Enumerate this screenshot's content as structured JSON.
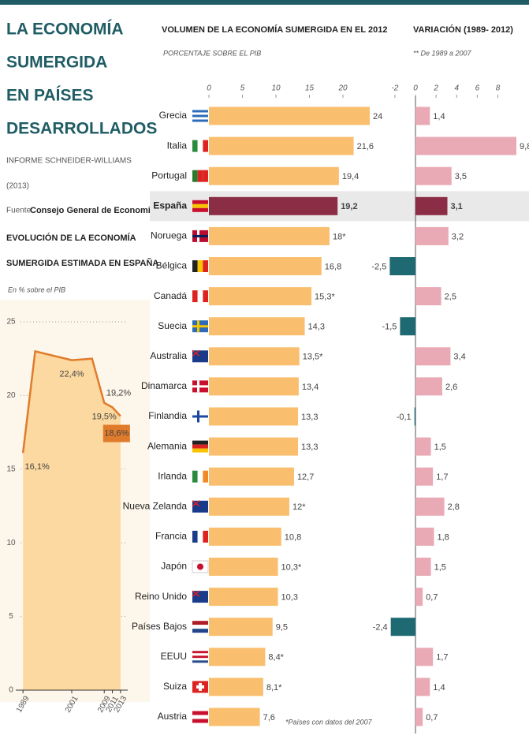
{
  "header": {
    "title_lines": [
      "LA ECONOMÍA",
      "SUMERGIDA",
      "EN PAÍSES",
      "DESARROLLADOS"
    ],
    "report_lines": [
      "INFORME SCHNEIDER-WILLIAMS",
      "(2013)"
    ],
    "source_label": "Fuente:",
    "source": "Consejo General de Economistas"
  },
  "chart_data": [
    {
      "type": "area",
      "title_lines": [
        "EVOLUCIÓN DE LA ECONOMÍA",
        "SUMERGIDA ESTIMADA EN ESPAÑA"
      ],
      "subtitle": "En % sobre el PIB",
      "x": [
        1989,
        1992,
        2001,
        2006,
        2009,
        2011,
        2013
      ],
      "values": [
        16.1,
        23.0,
        22.4,
        22.5,
        19.5,
        19.2,
        18.6
      ],
      "value_labels": [
        "16,1%",
        null,
        "22,4%",
        null,
        "19,5%",
        "19,2%",
        "18,6%"
      ],
      "xlim": [
        1988,
        2014
      ],
      "xticks": [
        1989,
        2001,
        2009,
        2011,
        2013
      ],
      "ylim": [
        0,
        25
      ],
      "yticks": [
        0,
        5,
        10,
        15,
        20,
        25
      ],
      "color": "#e07b2c",
      "fill": "#fbd9a0",
      "grid": true
    },
    {
      "type": "hbar",
      "title": "VOLUMEN DE LA ECONOMÍA SUMERGIDA EN EL 2012",
      "subtitle": "PORCENTAJE SOBRE EL PIB",
      "footnote": "*Países con datos del 2007",
      "categories": [
        "Grecia",
        "Italia",
        "Portugal",
        "España",
        "Noruega",
        "Bélgica",
        "Canadá",
        "Suecia",
        "Australia",
        "Dinamarca",
        "Finlandia",
        "Alemania",
        "Irlanda",
        "Nueva Zelanda",
        "Francia",
        "Japón",
        "Reino Unido",
        "Países Bajos",
        "EEUU",
        "Suiza",
        "Austria"
      ],
      "values": [
        24,
        21.6,
        19.4,
        19.2,
        18,
        16.8,
        15.3,
        14.3,
        13.5,
        13.4,
        13.3,
        13.3,
        12.7,
        12,
        10.8,
        10.3,
        10.3,
        9.5,
        8.4,
        8.1,
        7.6
      ],
      "value_labels": [
        "24",
        "21,6",
        "19,4",
        "19,2",
        "18*",
        "16,8",
        "15,3*",
        "14,3",
        "13,5*",
        "13,4",
        "13,3",
        "13,3",
        "12,7",
        "12*",
        "10,8",
        "10,3*",
        "10,3",
        "9,5",
        "8,4*",
        "8,1*",
        "7,6"
      ],
      "colors": [
        "#f9bf6e",
        "#f9bf6e",
        "#f9bf6e",
        "#8b2d45",
        "#f9bf6e",
        "#f9bf6e",
        "#f9bf6e",
        "#f9bf6e",
        "#f9bf6e",
        "#f9bf6e",
        "#f9bf6e",
        "#f9bf6e",
        "#f9bf6e",
        "#f9bf6e",
        "#f9bf6e",
        "#f9bf6e",
        "#f9bf6e",
        "#f9bf6e",
        "#f9bf6e",
        "#f9bf6e",
        "#f9bf6e"
      ],
      "highlight_color": "#8b2d45",
      "xlim": [
        0,
        24
      ],
      "xticks": [
        0,
        5,
        10,
        15,
        20
      ]
    },
    {
      "type": "hbar",
      "title": "VARIACIÓN (1989- 2012)",
      "subtitle": "** De 1989 a 2007",
      "values": [
        1.4,
        9.8,
        3.5,
        3.1,
        3.2,
        -2.5,
        2.5,
        -1.5,
        3.4,
        2.6,
        -0.1,
        1.5,
        1.7,
        2.8,
        1.8,
        1.5,
        0.7,
        -2.4,
        1.7,
        1.4,
        0.7
      ],
      "value_labels": [
        "1,4",
        "9,8",
        "3,5",
        "3,1",
        "3,2",
        "-2,5",
        "2,5",
        "-1,5",
        "3,4",
        "2,6",
        "-0,1",
        "1,5",
        "1,7",
        "2,8",
        "1,8",
        "1,5",
        "0,7",
        "-2,4",
        "1,7",
        "1,4",
        "0,7"
      ],
      "colors": [
        "#e9aab6",
        "#e9aab6",
        "#e9aab6",
        "#8b2d45",
        "#e9aab6",
        "#1f6a72",
        "#e9aab6",
        "#1f6a72",
        "#e9aab6",
        "#e9aab6",
        "#1f6a72",
        "#e9aab6",
        "#e9aab6",
        "#e9aab6",
        "#e9aab6",
        "#e9aab6",
        "#e9aab6",
        "#1f6a72",
        "#e9aab6",
        "#e9aab6",
        "#e9aab6"
      ],
      "highlight_color": "#8b2d45",
      "xlim": [
        -2.6,
        9.8
      ],
      "xticks": [
        -2,
        0,
        2,
        4,
        6,
        8
      ]
    }
  ]
}
